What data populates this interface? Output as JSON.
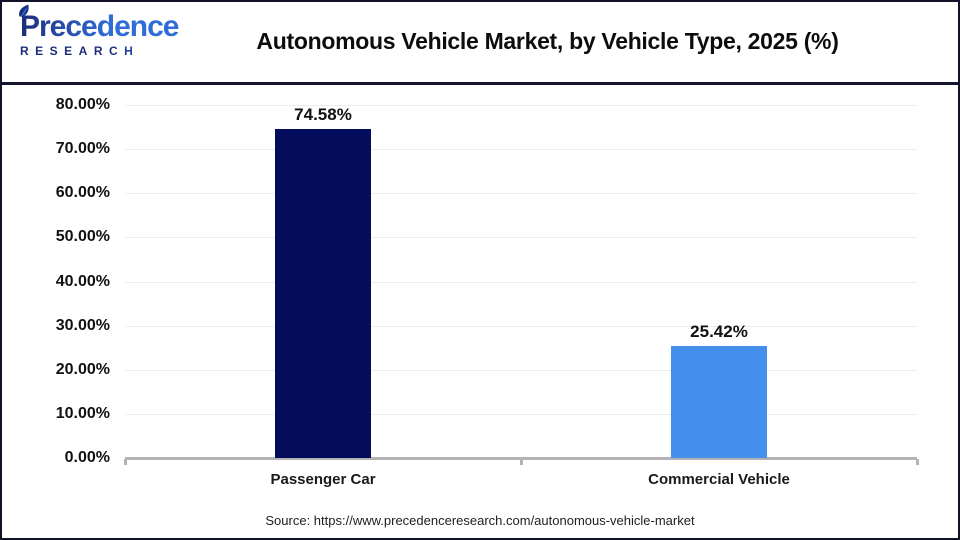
{
  "header": {
    "logo": {
      "line1": "Precedence",
      "line2": "RESEARCH",
      "color_navy": "#1c2d7a",
      "color_blue": "#2f6cd8"
    },
    "title": "Autonomous Vehicle Market, by Vehicle Type, 2025 (%)"
  },
  "chart_data": {
    "type": "bar",
    "title": "Autonomous Vehicle Market, by Vehicle Type, 2025 (%)",
    "categories": [
      "Passenger Car",
      "Commercial Vehicle"
    ],
    "values": [
      74.58,
      25.42
    ],
    "value_labels": [
      "74.58%",
      "25.42%"
    ],
    "bar_colors": [
      "#030d5b",
      "#4590ec"
    ],
    "xlabel": "",
    "ylabel": "",
    "ylim": [
      0,
      80
    ],
    "ytick_step": 10,
    "ytick_labels": [
      "80.00%",
      "70.00%",
      "60.00%",
      "50.00%",
      "40.00%",
      "30.00%",
      "20.00%",
      "10.00%",
      "0.00%"
    ],
    "grid": true,
    "gridline_color": "#ececee",
    "axis_color": "#b3b3b3",
    "legend": false
  },
  "footer": {
    "source": "Source: https://www.precedenceresearch.com/autonomous-vehicle-market"
  }
}
